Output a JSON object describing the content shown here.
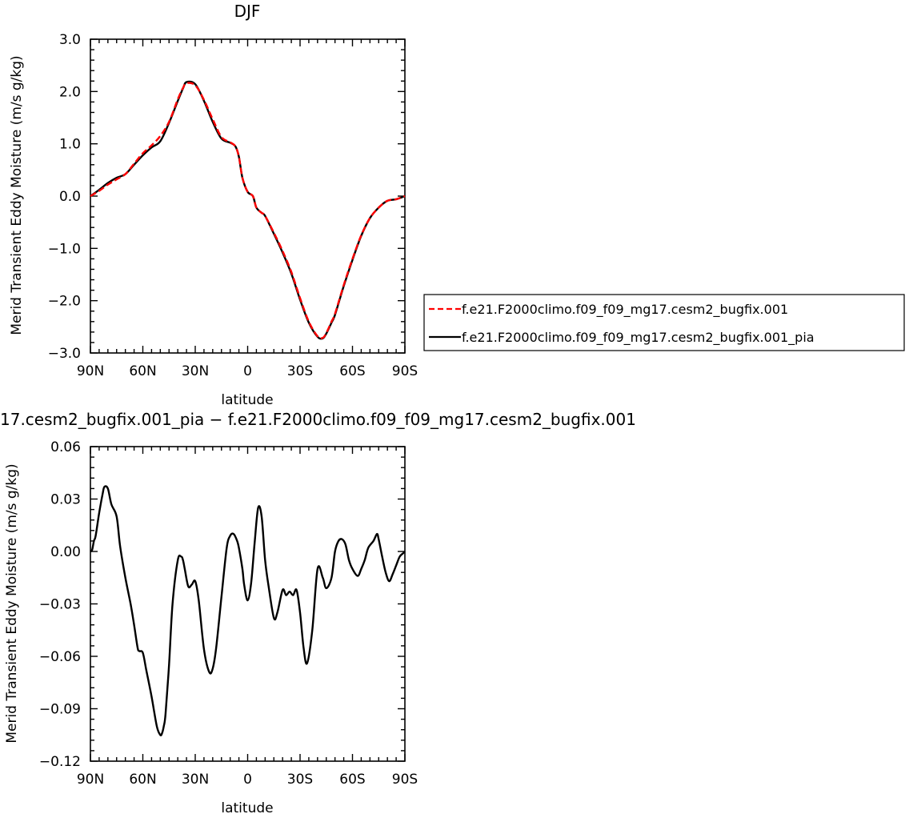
{
  "chart_data": [
    {
      "type": "line",
      "title": "DJF",
      "xlabel": "latitude",
      "ylabel": "Merid Transient Eddy Moisture (m/s g/kg)",
      "x_range": [
        90,
        -90
      ],
      "ylim": [
        -3.0,
        3.0
      ],
      "x_ticks": [
        {
          "value": 90,
          "label": "90N"
        },
        {
          "value": 60,
          "label": "60N"
        },
        {
          "value": 30,
          "label": "30N"
        },
        {
          "value": 0,
          "label": "0"
        },
        {
          "value": -30,
          "label": "30S"
        },
        {
          "value": -60,
          "label": "60S"
        },
        {
          "value": -90,
          "label": "90S"
        }
      ],
      "y_ticks": [
        {
          "value": 3.0,
          "label": "3.0"
        },
        {
          "value": 2.0,
          "label": "2.0"
        },
        {
          "value": 1.0,
          "label": "1.0"
        },
        {
          "value": 0.0,
          "label": "0.0"
        },
        {
          "value": -1.0,
          "label": "−1.0"
        },
        {
          "value": -2.0,
          "label": "−2.0"
        },
        {
          "value": -3.0,
          "label": "−3.0"
        }
      ],
      "legend_position": "right",
      "grid": false,
      "series": [
        {
          "name": "f.e21.F2000climo.f09_f09_mg17.cesm2_bugfix.001",
          "color": "#ff0000",
          "dash": "dashed",
          "x": [
            90,
            85,
            80,
            75,
            70,
            65,
            60,
            55,
            50,
            45,
            40,
            37,
            35,
            30,
            25,
            20,
            15,
            10,
            7,
            5,
            3,
            0,
            -3,
            -5,
            -8,
            -10,
            -15,
            -20,
            -25,
            -30,
            -35,
            -40,
            -43,
            -45,
            -48,
            -50,
            -55,
            -60,
            -65,
            -70,
            -75,
            -80,
            -85,
            -90
          ],
          "y": [
            0.0,
            0.1,
            0.22,
            0.32,
            0.42,
            0.62,
            0.82,
            0.97,
            1.15,
            1.42,
            1.85,
            2.07,
            2.16,
            2.12,
            1.84,
            1.47,
            1.13,
            1.03,
            0.95,
            0.75,
            0.35,
            0.08,
            0.0,
            -0.22,
            -0.32,
            -0.38,
            -0.7,
            -1.05,
            -1.45,
            -1.95,
            -2.4,
            -2.68,
            -2.71,
            -2.62,
            -2.4,
            -2.25,
            -1.7,
            -1.2,
            -0.75,
            -0.42,
            -0.22,
            -0.09,
            -0.06,
            0.0
          ]
        },
        {
          "name": "f.e21.F2000climo.f09_f09_mg17.cesm2_bugfix.001_pia",
          "color": "#000000",
          "dash": "solid",
          "x": [
            90,
            85,
            80,
            75,
            70,
            65,
            60,
            55,
            50,
            45,
            40,
            37,
            35,
            30,
            25,
            20,
            15,
            10,
            7,
            5,
            3,
            0,
            -3,
            -5,
            -8,
            -10,
            -15,
            -20,
            -25,
            -30,
            -35,
            -40,
            -43,
            -45,
            -48,
            -50,
            -55,
            -60,
            -65,
            -70,
            -75,
            -80,
            -85,
            -90
          ],
          "y": [
            0.0,
            0.12,
            0.25,
            0.35,
            0.42,
            0.6,
            0.78,
            0.93,
            1.05,
            1.4,
            1.82,
            2.06,
            2.18,
            2.14,
            1.82,
            1.42,
            1.1,
            1.02,
            0.95,
            0.75,
            0.35,
            0.08,
            0.0,
            -0.22,
            -0.32,
            -0.38,
            -0.72,
            -1.08,
            -1.48,
            -1.98,
            -2.42,
            -2.69,
            -2.72,
            -2.63,
            -2.42,
            -2.27,
            -1.72,
            -1.22,
            -0.76,
            -0.42,
            -0.22,
            -0.09,
            -0.06,
            0.0
          ]
        }
      ]
    },
    {
      "type": "line",
      "title": "17.cesm2_bugfix.001_pia − f.e21.F2000climo.f09_f09_mg17.cesm2_bugfix.001",
      "xlabel": "latitude",
      "ylabel": "Merid Transient Eddy Moisture (m/s g/kg)",
      "x_range": [
        90,
        -90
      ],
      "ylim": [
        -0.12,
        0.06
      ],
      "x_ticks": [
        {
          "value": 90,
          "label": "90N"
        },
        {
          "value": 60,
          "label": "60N"
        },
        {
          "value": 30,
          "label": "30N"
        },
        {
          "value": 0,
          "label": "0"
        },
        {
          "value": -30,
          "label": "30S"
        },
        {
          "value": -60,
          "label": "60S"
        },
        {
          "value": -90,
          "label": "90S"
        }
      ],
      "y_ticks": [
        {
          "value": 0.06,
          "label": "0.06"
        },
        {
          "value": 0.03,
          "label": "0.03"
        },
        {
          "value": 0.0,
          "label": "0.00"
        },
        {
          "value": -0.03,
          "label": "−0.03"
        },
        {
          "value": -0.06,
          "label": "−0.06"
        },
        {
          "value": -0.09,
          "label": "−0.09"
        },
        {
          "value": -0.12,
          "label": "−0.12"
        }
      ],
      "grid": false,
      "series": [
        {
          "color": "#000000",
          "dash": "solid",
          "x": [
            90,
            89,
            88,
            87,
            85,
            83,
            82,
            80,
            78,
            75,
            73,
            70,
            67,
            65,
            63,
            62,
            60,
            58,
            55,
            52,
            50,
            49,
            48,
            47,
            45,
            43,
            40,
            38,
            37,
            36,
            34,
            32,
            30,
            28,
            25,
            22,
            20,
            18,
            15,
            12,
            10,
            8,
            6,
            5,
            3,
            2,
            0,
            -2,
            -4,
            -6,
            -8,
            -10,
            -12,
            -15,
            -17,
            -20,
            -22,
            -24,
            -26,
            -28,
            -30,
            -32,
            -34,
            -37,
            -40,
            -43,
            -45,
            -48,
            -50,
            -52,
            -54,
            -56,
            -58,
            -60,
            -63,
            -65,
            -67,
            -69,
            -72,
            -74,
            -75,
            -77,
            -79,
            -81,
            -83,
            -85,
            -87,
            -89,
            -90
          ],
          "y": [
            0.0,
            0.001,
            0.006,
            0.009,
            0.022,
            0.033,
            0.037,
            0.036,
            0.027,
            0.02,
            0.003,
            -0.015,
            -0.03,
            -0.042,
            -0.055,
            -0.057,
            -0.058,
            -0.068,
            -0.083,
            -0.1,
            -0.105,
            -0.104,
            -0.1,
            -0.093,
            -0.065,
            -0.03,
            -0.005,
            -0.003,
            -0.005,
            -0.01,
            -0.02,
            -0.019,
            -0.017,
            -0.028,
            -0.056,
            -0.069,
            -0.067,
            -0.055,
            -0.026,
            0.002,
            0.009,
            0.01,
            0.006,
            0.002,
            -0.01,
            -0.019,
            -0.028,
            -0.018,
            0.005,
            0.025,
            0.02,
            -0.005,
            -0.02,
            -0.038,
            -0.035,
            -0.022,
            -0.025,
            -0.023,
            -0.025,
            -0.022,
            -0.035,
            -0.055,
            -0.064,
            -0.045,
            -0.01,
            -0.015,
            -0.021,
            -0.015,
            0.0,
            0.006,
            0.007,
            0.004,
            -0.005,
            -0.01,
            -0.014,
            -0.01,
            -0.005,
            0.002,
            0.006,
            0.01,
            0.007,
            -0.003,
            -0.012,
            -0.017,
            -0.013,
            -0.008,
            -0.003,
            -0.001,
            0.0
          ]
        }
      ]
    }
  ]
}
